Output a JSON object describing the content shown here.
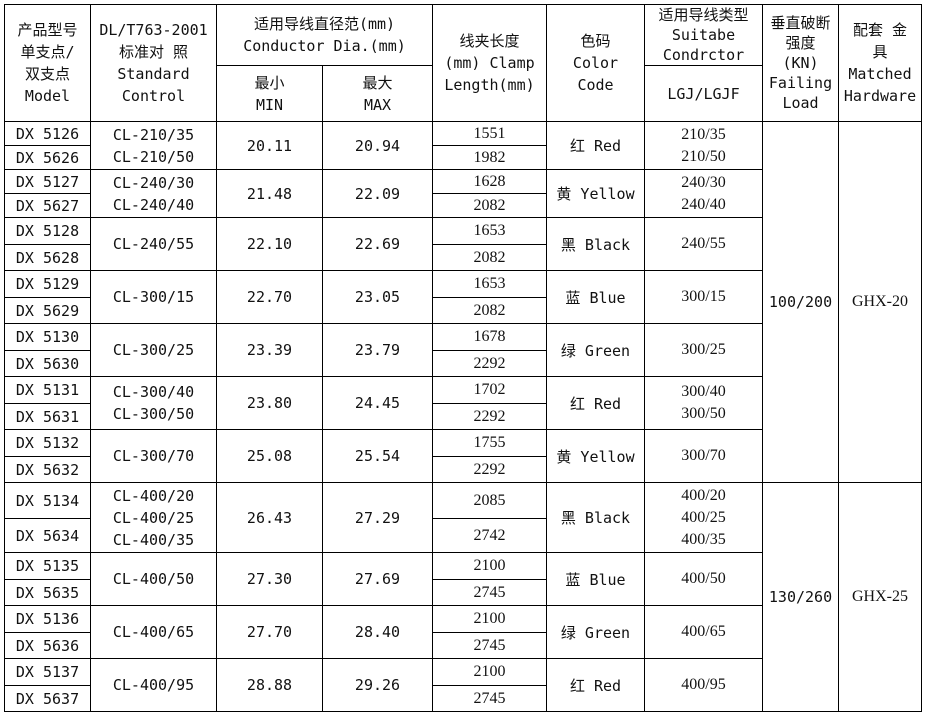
{
  "headers": {
    "model": "产品型号\n单支点/\n双支点\nModel",
    "standard": "DL/T763-2001\n标准对 照\nStandard\nControl",
    "dia": "适用导线直径范(mm)\nConductor Dia.(mm)",
    "min": "最小\nMIN",
    "max": "最大\nMAX",
    "length": "线夹长度\n(mm) Clamp\nLength(mm)",
    "color": "色码\nColor\nCode",
    "type_top": "适用导线类型\nSuitabe\nCondrctor",
    "type_sub": "LGJ/LGJF",
    "load": "垂直破断\n强度\n(KN)\nFailing\nLoad",
    "hardware": "配套  金\n具\nMatched\nHardware"
  },
  "groups": [
    {
      "models": [
        "DX 5126",
        "DX 5626"
      ],
      "standards": [
        "CL-210/35",
        "CL-210/50"
      ],
      "min": "20.11",
      "max": "20.94",
      "lengths": [
        "1551",
        "1982"
      ],
      "color": "红 Red",
      "types": [
        "210/35",
        "210/50"
      ]
    },
    {
      "models": [
        "DX 5127",
        "DX 5627"
      ],
      "standards": [
        "CL-240/30",
        "CL-240/40"
      ],
      "min": "21.48",
      "max": "22.09",
      "lengths": [
        "1628",
        "2082"
      ],
      "color": "黄 Yellow",
      "types": [
        "240/30",
        "240/40"
      ]
    },
    {
      "models": [
        "DX 5128",
        "DX 5628"
      ],
      "standards": [
        "CL-240/55"
      ],
      "min": "22.10",
      "max": "22.69",
      "lengths": [
        "1653",
        "2082"
      ],
      "color": "黑 Black",
      "types": [
        "240/55"
      ]
    },
    {
      "models": [
        "DX 5129",
        "DX 5629"
      ],
      "standards": [
        "CL-300/15"
      ],
      "min": "22.70",
      "max": "23.05",
      "lengths": [
        "1653",
        "2082"
      ],
      "color": "蓝 Blue",
      "types": [
        "300/15"
      ]
    },
    {
      "models": [
        "DX 5130",
        "DX 5630"
      ],
      "standards": [
        "CL-300/25"
      ],
      "min": "23.39",
      "max": "23.79",
      "lengths": [
        "1678",
        "2292"
      ],
      "color": "绿 Green",
      "types": [
        "300/25"
      ]
    },
    {
      "models": [
        "DX 5131",
        "DX 5631"
      ],
      "standards": [
        "CL-300/40",
        "CL-300/50"
      ],
      "min": "23.80",
      "max": "24.45",
      "lengths": [
        "1702",
        "2292"
      ],
      "color": "红 Red",
      "types": [
        "300/40",
        "300/50"
      ]
    },
    {
      "models": [
        "DX 5132",
        "DX 5632"
      ],
      "standards": [
        "CL-300/70"
      ],
      "min": "25.08",
      "max": "25.54",
      "lengths": [
        "1755",
        "2292"
      ],
      "color": "黄 Yellow",
      "types": [
        "300/70"
      ]
    },
    {
      "models": [
        "DX 5134",
        "DX 5634"
      ],
      "standards": [
        "CL-400/20",
        "CL-400/25",
        "CL-400/35"
      ],
      "min": "26.43",
      "max": "27.29",
      "lengths": [
        "2085",
        "2742"
      ],
      "color": "黑 Black",
      "types": [
        "400/20",
        "400/25",
        "400/35"
      ]
    },
    {
      "models": [
        "DX 5135",
        "DX 5635"
      ],
      "standards": [
        "CL-400/50"
      ],
      "min": "27.30",
      "max": "27.69",
      "lengths": [
        "2100",
        "2745"
      ],
      "color": "蓝 Blue",
      "types": [
        "400/50"
      ]
    },
    {
      "models": [
        "DX 5136",
        "DX 5636"
      ],
      "standards": [
        "CL-400/65"
      ],
      "min": "27.70",
      "max": "28.40",
      "lengths": [
        "2100",
        "2745"
      ],
      "color": "绿 Green",
      "types": [
        "400/65"
      ]
    },
    {
      "models": [
        "DX 5137",
        "DX 5637"
      ],
      "standards": [
        "CL-400/95"
      ],
      "min": "28.88",
      "max": "29.26",
      "lengths": [
        "2100",
        "2745"
      ],
      "color": "红 Red",
      "types": [
        "400/95"
      ]
    }
  ],
  "load_blocks": [
    {
      "value": "100/200",
      "hardware": "GHX-20",
      "group_count": 7
    },
    {
      "value": "130/260",
      "hardware": "GHX-25",
      "group_count": 4
    }
  ]
}
